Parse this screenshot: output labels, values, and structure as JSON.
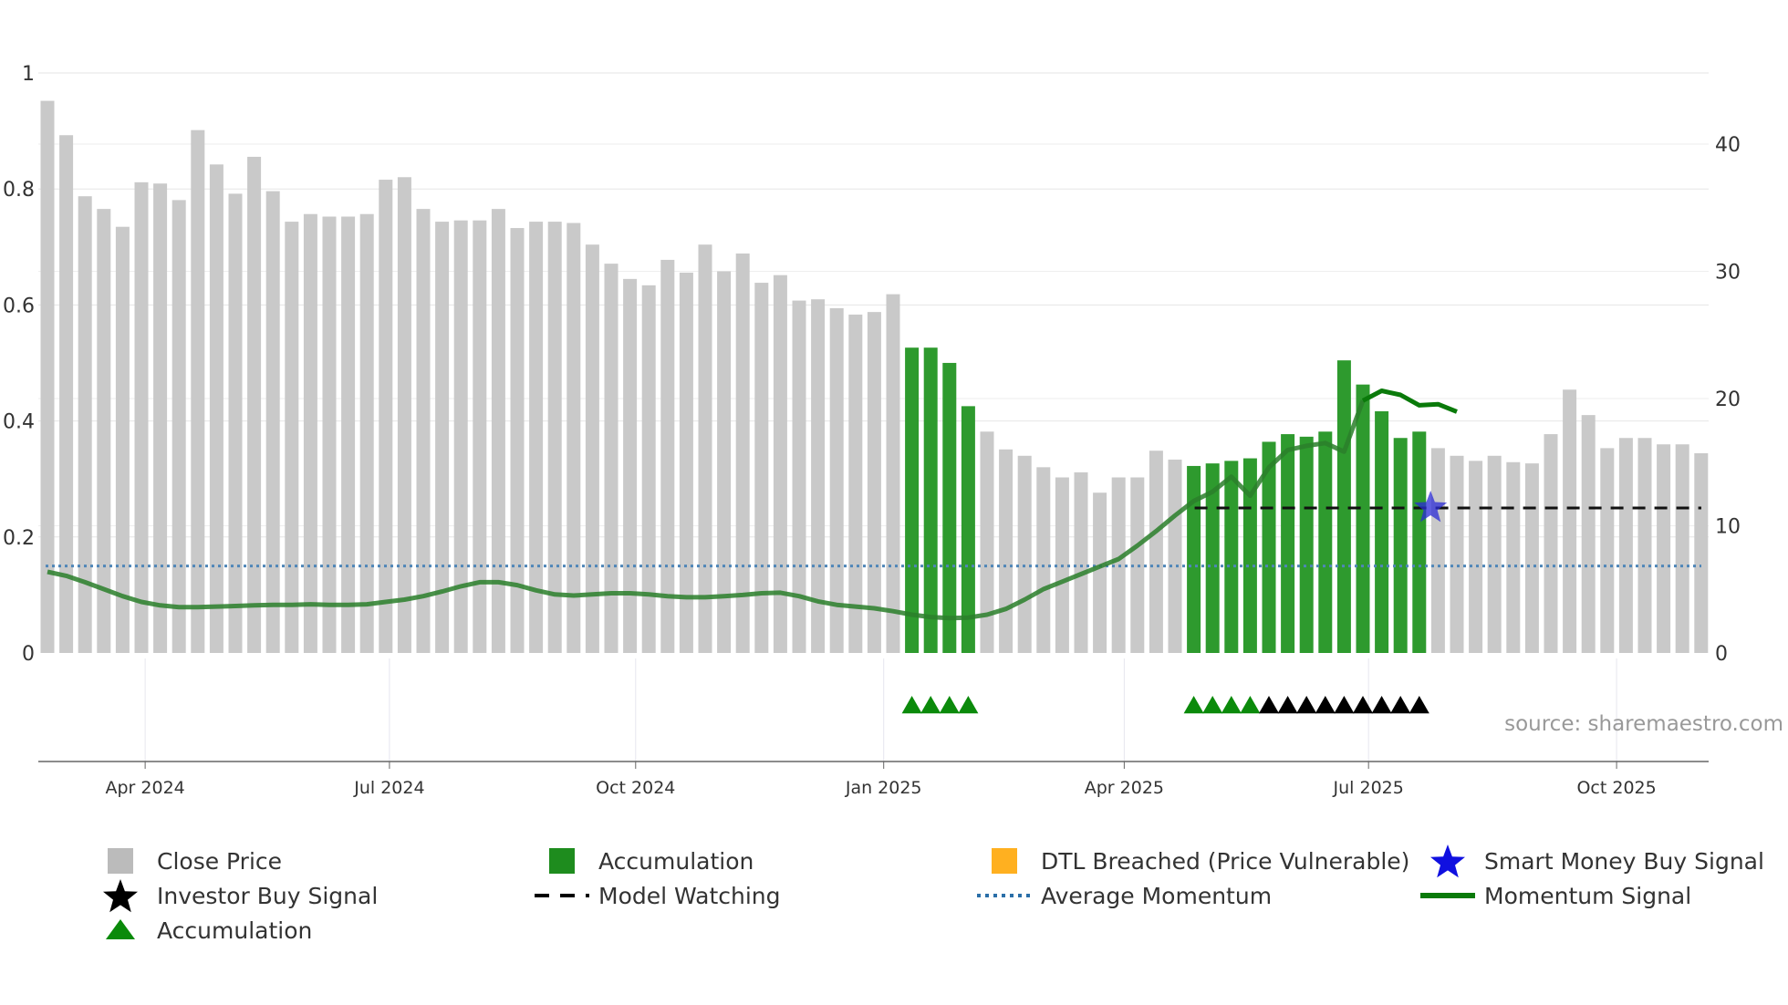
{
  "chart_data": {
    "type": "bar",
    "source": "source: sharemaestro.com",
    "left_axis": {
      "min": 0,
      "max": 1,
      "ticks": [
        0,
        0.2,
        0.4,
        0.6,
        0.8,
        1
      ],
      "tick_labels": [
        "0",
        "0.2",
        "0.4",
        "0.6",
        "0.8",
        "1"
      ]
    },
    "right_axis": {
      "min": 0,
      "max": 45.7,
      "ticks": [
        0,
        10,
        20,
        30,
        40
      ],
      "tick_labels": [
        "0",
        "10",
        "20",
        "30",
        "40"
      ]
    },
    "x_ticks": [
      {
        "label": "Apr 2024",
        "index": 5.2
      },
      {
        "label": "Jul 2024",
        "index": 18.2
      },
      {
        "label": "Oct 2024",
        "index": 31.3
      },
      {
        "label": "Jan 2025",
        "index": 44.5
      },
      {
        "label": "Apr 2025",
        "index": 57.3
      },
      {
        "label": "Jul 2025",
        "index": 70.3
      },
      {
        "label": "Oct 2025",
        "index": 83.5
      }
    ],
    "series": [
      {
        "name": "Close Price",
        "axis": "right",
        "values": [
          43.4,
          40.7,
          35.9,
          34.9,
          33.5,
          37.0,
          36.9,
          35.6,
          41.1,
          38.4,
          36.1,
          39.0,
          36.3,
          33.9,
          34.5,
          34.3,
          34.3,
          34.5,
          37.2,
          37.4,
          34.9,
          33.9,
          34.0,
          34.0,
          34.9,
          33.4,
          33.9,
          33.9,
          33.8,
          32.1,
          30.6,
          29.4,
          28.9,
          30.9,
          29.9,
          32.1,
          30.0,
          31.4,
          29.1,
          29.7,
          27.7,
          27.8,
          27.1,
          26.6,
          26.8,
          28.2,
          24.0,
          24.0,
          22.8,
          19.4,
          17.4,
          16.0,
          15.5,
          14.6,
          13.8,
          14.2,
          12.6,
          13.8,
          13.8,
          15.9,
          15.2,
          14.7,
          14.9,
          15.1,
          15.3,
          16.6,
          17.2,
          17.0,
          17.4,
          23.0,
          21.1,
          19.0,
          16.9,
          17.4,
          16.1,
          15.5,
          15.1,
          15.5,
          15.0,
          14.9,
          17.2,
          20.7,
          18.7,
          16.1,
          16.9,
          16.9,
          16.4,
          16.4,
          15.7
        ],
        "color": "#bbbbbb"
      },
      {
        "name": "Momentum Signal",
        "axis": "left",
        "values": [
          0.14,
          0.133,
          0.122,
          0.11,
          0.098,
          0.088,
          0.082,
          0.079,
          0.079,
          0.08,
          0.081,
          0.082,
          0.083,
          0.083,
          0.084,
          0.083,
          0.083,
          0.084,
          0.088,
          0.092,
          0.098,
          0.106,
          0.115,
          0.122,
          0.122,
          0.117,
          0.108,
          0.101,
          0.099,
          0.101,
          0.103,
          0.103,
          0.101,
          0.098,
          0.096,
          0.096,
          0.098,
          0.1,
          0.103,
          0.104,
          0.098,
          0.089,
          0.083,
          0.08,
          0.077,
          0.072,
          0.066,
          0.062,
          0.06,
          0.061,
          0.066,
          0.076,
          0.092,
          0.11,
          0.123,
          0.136,
          0.149,
          0.162,
          0.185,
          0.21,
          0.237,
          0.262,
          0.278,
          0.304,
          0.271,
          0.32,
          0.35,
          0.357,
          0.362,
          0.347,
          0.435,
          0.452,
          0.445,
          0.427,
          0.429,
          0.416
        ],
        "start_index": 0,
        "color": "#1a7a1a"
      }
    ],
    "accumulation_bar_indices": [
      46,
      47,
      48,
      49,
      61,
      62,
      63,
      64,
      65,
      66,
      67,
      68,
      69,
      70,
      71,
      72,
      73
    ],
    "accumulation_triangle_indices": [
      46,
      47,
      48,
      49,
      61,
      62,
      63,
      64
    ],
    "investor_buy_indices": [
      65,
      66,
      67,
      68,
      69,
      70,
      71,
      72,
      73
    ],
    "smart_money_buy": {
      "index": 73.6,
      "value": 0.25
    },
    "model_watching": {
      "value": 0.25,
      "start_index": 61
    },
    "average_momentum": 0.15,
    "legend": [
      {
        "label": "Close Price",
        "marker": "square-icon",
        "color": "#bbbbbb"
      },
      {
        "label": "Accumulation",
        "marker": "square-icon",
        "color": "#1e8c1e"
      },
      {
        "label": "DTL Breached (Price Vulnerable)",
        "marker": "square-icon",
        "color": "#ffb020"
      },
      {
        "label": "Smart Money Buy Signal",
        "marker": "star-icon",
        "color": "#1010e0"
      },
      {
        "label": "Investor Buy Signal",
        "marker": "star-icon",
        "color": "#000000"
      },
      {
        "label": "Model Watching",
        "marker": "dash-line-icon",
        "color": "#000000"
      },
      {
        "label": "Average Momentum",
        "marker": "dotted-line-icon",
        "color": "#2a6fa8"
      },
      {
        "label": "Momentum Signal",
        "marker": "solid-line-icon",
        "color": "#0a7a0a"
      },
      {
        "label": "Accumulation",
        "marker": "triangle-icon",
        "color": "#0a8a0a"
      }
    ]
  }
}
